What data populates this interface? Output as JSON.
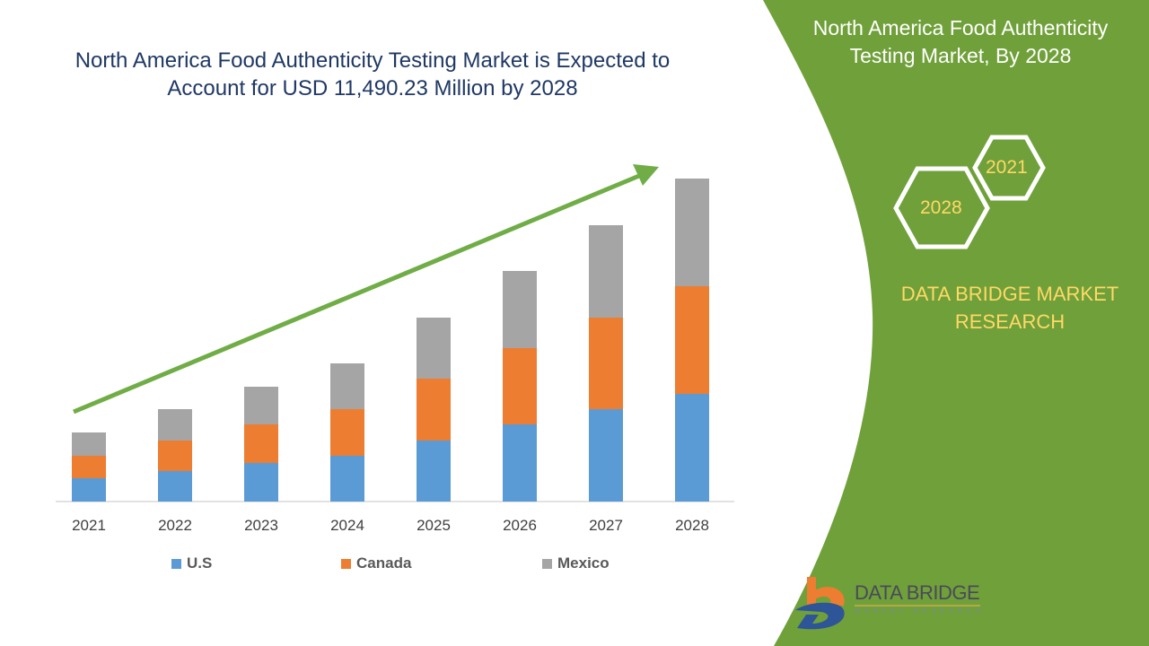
{
  "title": "North America Food Authenticity Testing Market is Expected to Account for USD 11,490.23 Million by 2028",
  "panel": {
    "title": "North America Food Authenticity Testing Market, By 2028",
    "hex_years": [
      "2021",
      "2028"
    ],
    "brand": "DATA BRIDGE MARKET RESEARCH",
    "logo_text": "DATA BRIDGE",
    "logo_subtext": "MARKET RESEARCH",
    "color": "#70a03a"
  },
  "chart_data": {
    "type": "bar",
    "stacked": true,
    "categories": [
      "2021",
      "2022",
      "2023",
      "2024",
      "2025",
      "2026",
      "2027",
      "2028"
    ],
    "series": [
      {
        "name": "U.S",
        "color": "#5b9bd5",
        "values": [
          26,
          34,
          43,
          51,
          68,
          86,
          103,
          120
        ]
      },
      {
        "name": "Canada",
        "color": "#ed7d31",
        "values": [
          25,
          34,
          43,
          52,
          69,
          85,
          102,
          120
        ]
      },
      {
        "name": "Mexico",
        "color": "#a5a5a5",
        "values": [
          26,
          35,
          42,
          51,
          68,
          86,
          103,
          120
        ]
      }
    ],
    "xlabel": "",
    "ylabel": "",
    "y_axis_shown": false,
    "grid": false,
    "legend": "bottom",
    "trend_arrow_color": "#70ad47"
  }
}
